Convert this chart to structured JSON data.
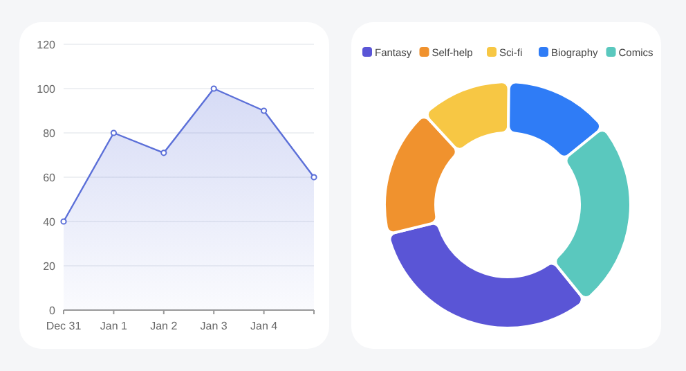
{
  "chart_data": [
    {
      "type": "area",
      "categories": [
        "Dec 31",
        "Jan 1",
        "Jan 2",
        "Jan 3",
        "Jan 4",
        null
      ],
      "values": [
        40,
        80,
        71,
        100,
        90,
        60
      ],
      "color": "#5b6fd8",
      "ylim": [
        0,
        120
      ],
      "yticks": [
        0,
        20,
        40,
        60,
        80,
        100,
        120
      ],
      "grid": "y",
      "marker": "circle"
    },
    {
      "type": "donut",
      "categories": [
        "Fantasy",
        "Self-help",
        "Sci-fi",
        "Biography",
        "Comics"
      ],
      "values": [
        32,
        17,
        12,
        14,
        25
      ],
      "colors": [
        "#5a55d6",
        "#f0922e",
        "#f7c744",
        "#2f7cf6",
        "#5ac8be"
      ],
      "legend": "top"
    }
  ]
}
